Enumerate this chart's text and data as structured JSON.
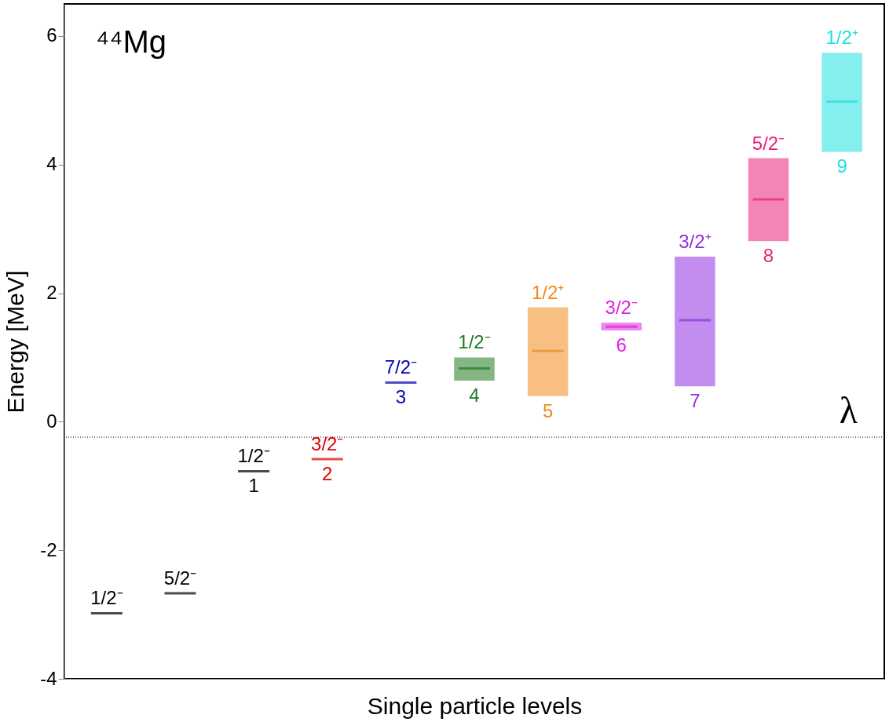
{
  "chart_data": {
    "type": "box",
    "xlabel": "Single particle levels",
    "ylabel": "Energy [MeV]",
    "categories": [
      null,
      null,
      "1",
      "2",
      "3",
      "4",
      "5",
      "6",
      "7",
      "8",
      "9"
    ],
    "boxes": [
      {
        "low": -2.98,
        "q1": -2.98,
        "median": -2.98,
        "q3": -2.98,
        "high": -2.98
      },
      {
        "low": -2.67,
        "q1": -2.67,
        "median": -2.67,
        "q3": -2.67,
        "high": -2.67
      },
      {
        "low": -0.77,
        "q1": -0.77,
        "median": -0.77,
        "q3": -0.77,
        "high": -0.77
      },
      {
        "low": -0.58,
        "q1": -0.58,
        "median": -0.58,
        "q3": -0.58,
        "high": -0.58
      },
      {
        "low": 0.61,
        "q1": 0.61,
        "median": 0.61,
        "q3": 0.61,
        "high": 0.61
      },
      {
        "low": 0.64,
        "q1": 0.64,
        "median": 0.83,
        "q3": 1.0,
        "high": 1.0
      },
      {
        "low": 0.4,
        "q1": 0.4,
        "median": 1.1,
        "q3": 1.78,
        "high": 1.78
      },
      {
        "low": 1.42,
        "q1": 1.42,
        "median": 1.48,
        "q3": 1.54,
        "high": 1.54
      },
      {
        "low": 0.55,
        "q1": 0.55,
        "median": 1.58,
        "q3": 2.57,
        "high": 2.57
      },
      {
        "low": 2.81,
        "q1": 2.81,
        "median": 3.46,
        "q3": 4.1,
        "high": 4.1
      },
      {
        "low": 4.2,
        "q1": 4.2,
        "median": 4.98,
        "q3": 5.74,
        "high": 5.74
      }
    ],
    "value_labels": [
      "1/2⁻",
      "5/2⁻",
      "1/2⁻",
      "3/2⁻",
      "7/2⁻",
      "1/2⁻",
      "1/2⁺",
      "3/2⁻",
      "3/2⁺",
      "5/2⁻",
      "1/2⁺"
    ],
    "colors": [
      "#000000",
      "#000000",
      "#000000",
      "#e00000",
      "#0000b0",
      "#1f7a1f",
      "#f08a1c",
      "#e020e0",
      "#9030e0",
      "#e8207a",
      "#20e0e0"
    ],
    "ylim": [
      -4,
      6.5
    ],
    "yticks": [
      -4,
      -2,
      0,
      2,
      4,
      6
    ],
    "grid": false,
    "ref_lines": [
      {
        "axis": "y",
        "value": -0.24,
        "label": "λ",
        "line_style": "dotted",
        "color": "#000000"
      }
    ],
    "annotations": [
      "⁴⁴Mg"
    ]
  }
}
